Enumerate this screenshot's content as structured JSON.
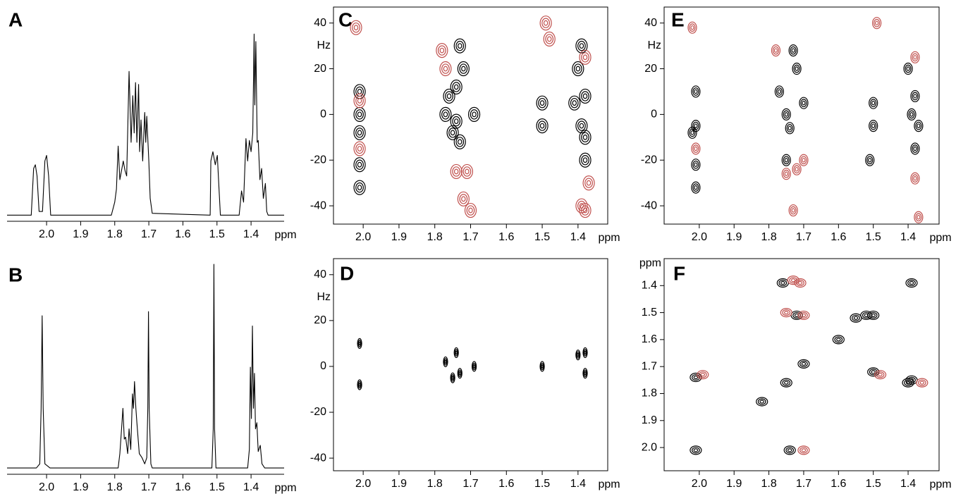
{
  "chart_data": [
    {
      "type": "line",
      "label": "A",
      "xlabel": "ppm",
      "xlim": [
        2.116,
        1.303
      ],
      "ylim": [
        0,
        100
      ],
      "frame": false,
      "color": "#000000",
      "xticks": [
        {
          "value": 2,
          "label": "2.0"
        },
        1.9,
        1.8,
        1.7,
        1.6,
        1.5,
        1.4
      ],
      "x": [
        2.116,
        2.045,
        2.038,
        2.033,
        2.028,
        2.022,
        2.012,
        2.005,
        2.0,
        1.994,
        1.988,
        1.81,
        1.8,
        1.795,
        1.79,
        1.785,
        1.775,
        1.77,
        1.765,
        1.758,
        1.752,
        1.747,
        1.743,
        1.739,
        1.735,
        1.73,
        1.727,
        1.723,
        1.718,
        1.712,
        1.709,
        1.706,
        1.7,
        1.696,
        1.69,
        1.52,
        1.518,
        1.512,
        1.505,
        1.499,
        1.494,
        1.49,
        1.435,
        1.428,
        1.422,
        1.415,
        1.41,
        1.405,
        1.4,
        1.395,
        1.391,
        1.389,
        1.386,
        1.382,
        1.379,
        1.374,
        1.369,
        1.364,
        1.358,
        1.354,
        1.35,
        1.303
      ],
      "values": [
        1,
        1,
        26,
        28,
        22,
        3,
        3,
        30,
        33,
        22,
        1,
        1,
        8,
        15,
        38,
        20,
        30,
        25,
        22,
        78,
        40,
        65,
        45,
        72,
        40,
        71,
        35,
        52,
        30,
        56,
        40,
        54,
        30,
        10,
        2,
        1,
        30,
        35,
        28,
        33,
        15,
        1,
        1,
        14,
        8,
        42,
        30,
        41,
        35,
        45,
        98,
        60,
        94,
        40,
        41,
        20,
        26,
        10,
        18,
        3,
        1,
        1
      ]
    },
    {
      "type": "line",
      "label": "B",
      "xlabel": "ppm",
      "xlim": [
        2.116,
        1.303
      ],
      "ylim": [
        0,
        100
      ],
      "frame": false,
      "color": "#000000",
      "xticks": [
        {
          "value": 2,
          "label": "2.0"
        },
        1.9,
        1.8,
        1.7,
        1.6,
        1.5,
        1.4
      ],
      "x": [
        2.116,
        2.03,
        2.02,
        2.016,
        2.013,
        2.01,
        2.005,
        1.99,
        1.79,
        1.785,
        1.78,
        1.776,
        1.772,
        1.768,
        1.762,
        1.758,
        1.753,
        1.748,
        1.745,
        1.742,
        1.738,
        1.735,
        1.728,
        1.72,
        1.712,
        1.706,
        1.703,
        1.701,
        1.699,
        1.694,
        1.69,
        1.515,
        1.511,
        1.509,
        1.507,
        1.503,
        1.41,
        1.405,
        1.402,
        1.399,
        1.396,
        1.393,
        1.39,
        1.387,
        1.383,
        1.379,
        1.373,
        1.368,
        1.36,
        1.303
      ],
      "values": [
        1,
        1,
        3,
        30,
        75,
        30,
        3,
        1,
        1,
        8,
        20,
        30,
        15,
        16,
        8,
        20,
        10,
        37,
        30,
        43,
        30,
        23,
        8,
        6,
        3,
        6,
        30,
        77,
        30,
        3,
        1,
        1,
        20,
        100,
        20,
        1,
        1,
        10,
        50,
        25,
        70,
        30,
        47,
        20,
        23,
        9,
        12,
        3,
        1,
        1
      ]
    },
    {
      "type": "scatter",
      "label": "C",
      "xlabel": "ppm",
      "ylabel": "Hz",
      "xlim": [
        2.083,
        1.317
      ],
      "ylim": [
        -48,
        47
      ],
      "frame": true,
      "xticks": [
        {
          "value": 2,
          "label": "2.0"
        },
        1.9,
        1.8,
        1.7,
        1.6,
        1.5,
        1.4
      ],
      "yticks": [
        -40,
        -20,
        0,
        20,
        40
      ],
      "series": [
        {
          "color": "#000000",
          "x": [
            2.01,
            2.01,
            2.01,
            2.01,
            2.01,
            1.77,
            1.76,
            1.75,
            1.74,
            1.73,
            1.72,
            1.74,
            1.73,
            1.69,
            1.5,
            1.5,
            1.41,
            1.39,
            1.38,
            1.38,
            1.4,
            1.38,
            1.39
          ],
          "values": [
            10,
            -8,
            0,
            -22,
            -32,
            0,
            8,
            -8,
            12,
            30,
            20,
            -3,
            -12,
            0,
            5,
            -5,
            5,
            -5,
            8,
            -10,
            20,
            -20,
            30
          ]
        },
        {
          "color": "#c0504d",
          "x": [
            2.02,
            2.01,
            2.01,
            1.78,
            1.77,
            1.74,
            1.71,
            1.72,
            1.7,
            1.49,
            1.48,
            1.38,
            1.37,
            1.38,
            1.39
          ],
          "values": [
            38,
            -15,
            6,
            28,
            20,
            -25,
            -25,
            -37,
            -42,
            40,
            33,
            25,
            -30,
            -42,
            -40
          ]
        }
      ]
    },
    {
      "type": "scatter",
      "label": "D",
      "xlabel": "ppm",
      "ylabel": "Hz",
      "xlim": [
        2.083,
        1.317
      ],
      "ylim": [
        -45.5,
        47
      ],
      "frame": true,
      "xticks": [
        {
          "value": 2,
          "label": "2.0"
        },
        1.9,
        1.8,
        1.7,
        1.6,
        1.5,
        1.4
      ],
      "yticks": [
        -40,
        -20,
        0,
        20,
        40
      ],
      "series": [
        {
          "color": "#000000",
          "x": [
            2.01,
            2.01,
            1.77,
            1.75,
            1.74,
            1.73,
            1.69,
            1.5,
            1.4,
            1.38,
            1.38
          ],
          "values": [
            10,
            -8,
            2,
            -5,
            6,
            -3,
            0,
            0,
            5,
            -3,
            6
          ]
        }
      ]
    },
    {
      "type": "scatter",
      "label": "E",
      "xlabel": "ppm",
      "ylabel": "Hz",
      "xlim": [
        2.101,
        1.311
      ],
      "ylim": [
        -48,
        47
      ],
      "frame": true,
      "xticks": [
        {
          "value": 2,
          "label": "2.0"
        },
        1.9,
        1.8,
        1.7,
        1.6,
        1.5,
        1.4
      ],
      "yticks": [
        -40,
        -20,
        0,
        20,
        40
      ],
      "series": [
        {
          "color": "#000000",
          "x": [
            2.01,
            2.01,
            2.01,
            2.01,
            2.02,
            1.77,
            1.75,
            1.74,
            1.73,
            1.72,
            1.7,
            1.75,
            1.5,
            1.5,
            1.51,
            1.39,
            1.38,
            1.37,
            1.4,
            1.38
          ],
          "values": [
            10,
            -5,
            -22,
            -32,
            -8,
            10,
            0,
            -6,
            28,
            20,
            5,
            -20,
            5,
            -5,
            -20,
            0,
            8,
            -5,
            20,
            -15
          ]
        },
        {
          "color": "#c0504d",
          "x": [
            2.02,
            2.01,
            1.78,
            1.75,
            1.72,
            1.73,
            1.7,
            1.49,
            1.38,
            1.38,
            1.37
          ],
          "values": [
            38,
            -15,
            28,
            -26,
            -24,
            -42,
            -20,
            40,
            25,
            -28,
            -45
          ]
        }
      ]
    },
    {
      "type": "scatter",
      "label": "F",
      "xlabel": "ppm",
      "ylabel": "ppm",
      "xlim": [
        2.101,
        1.311
      ],
      "ylim": [
        2.086,
        1.3
      ],
      "frame": true,
      "xticks": [
        {
          "value": 2,
          "label": "2.0"
        },
        1.9,
        1.8,
        1.7,
        1.6,
        1.5,
        1.4
      ],
      "yticks": [
        1.4,
        1.5,
        1.6,
        1.7,
        1.8,
        1.9,
        {
          "value": 2,
          "label": "2.0"
        }
      ],
      "series": [
        {
          "color": "#000000",
          "x": [
            2.01,
            1.75,
            1.7,
            1.52,
            1.55,
            1.39,
            1.6,
            2.01,
            1.74,
            1.76,
            1.39,
            1.5,
            1.5,
            1.72,
            1.4,
            1.82
          ],
          "values": [
            2.01,
            1.76,
            1.69,
            1.51,
            1.52,
            1.39,
            1.6,
            1.74,
            2.01,
            1.39,
            1.75,
            1.72,
            1.51,
            1.51,
            1.76,
            1.83
          ]
        },
        {
          "color": "#c0504d",
          "x": [
            1.99,
            1.71,
            1.7,
            1.48,
            1.36,
            1.7,
            1.73,
            1.75
          ],
          "values": [
            1.73,
            1.39,
            1.51,
            1.73,
            1.76,
            2.01,
            1.38,
            1.5
          ]
        }
      ]
    }
  ]
}
